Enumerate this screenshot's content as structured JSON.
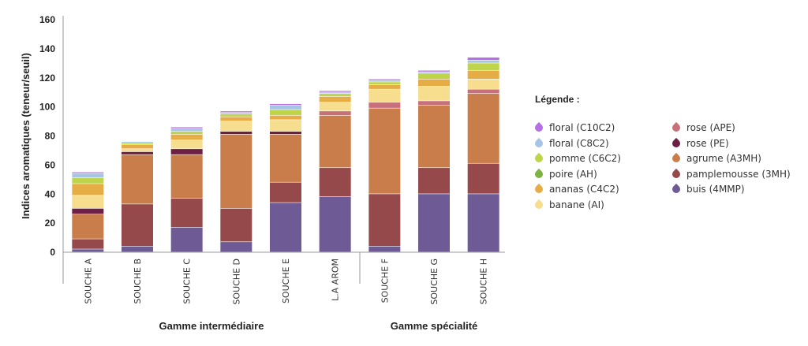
{
  "chart_data": {
    "type": "bar",
    "stacked": true,
    "ylabel": "Indices aromatiques (teneur/seuil)",
    "ylim": [
      0,
      160
    ],
    "yticks": [
      0,
      20,
      40,
      60,
      80,
      100,
      120,
      140,
      160
    ],
    "categories": [
      "SOUCHE A",
      "SOUCHE B",
      "SOUCHE C",
      "SOUCHE D",
      "SOUCHE E",
      "L.A AROM",
      "SOUCHE F",
      "SOUCHE G",
      "SOUCHE H"
    ],
    "groups": [
      {
        "label": "Gamme intermédiaire",
        "categories": [
          "SOUCHE A",
          "SOUCHE B",
          "SOUCHE C",
          "SOUCHE D",
          "SOUCHE E",
          "L.A AROM"
        ]
      },
      {
        "label": "Gamme spécialité",
        "categories": [
          "SOUCHE F",
          "SOUCHE G",
          "SOUCHE H"
        ]
      }
    ],
    "legend_title": "Légende :",
    "series": [
      {
        "name": "buis (4MMP)",
        "color": "#6e5b96",
        "values": [
          2,
          4,
          17,
          7,
          34,
          38,
          4,
          40,
          40
        ]
      },
      {
        "name": "pamplemousse (3MH)",
        "color": "#95494b",
        "values": [
          7,
          29,
          20,
          23,
          14,
          20,
          36,
          18,
          21
        ]
      },
      {
        "name": "agrume (A3MH)",
        "color": "#c97d4a",
        "values": [
          17,
          34,
          30,
          51,
          33,
          36,
          59,
          43,
          48
        ]
      },
      {
        "name": "rose (PE)",
        "color": "#6e1f45",
        "values": [
          4,
          2,
          4,
          2,
          2,
          0,
          0,
          0,
          0
        ]
      },
      {
        "name": "rose (APE)",
        "color": "#c7707a",
        "values": [
          0,
          0,
          0,
          0,
          0,
          3,
          4,
          3,
          3
        ]
      },
      {
        "name": "banane (AI)",
        "color": "#f7dd8e",
        "values": [
          9,
          2,
          6,
          7,
          8,
          6,
          9,
          10,
          7
        ]
      },
      {
        "name": "ananas (C4C2)",
        "color": "#e6ad46",
        "values": [
          8,
          3,
          4,
          3,
          3,
          4,
          3,
          5,
          6
        ]
      },
      {
        "name": "poire (AH)",
        "color": "#7cb342",
        "values": [
          0,
          0,
          0,
          0,
          0,
          0,
          0,
          0,
          0
        ]
      },
      {
        "name": "pomme (C6C2)",
        "color": "#bed449",
        "values": [
          4,
          1,
          2,
          2,
          4,
          2,
          2,
          4,
          5
        ]
      },
      {
        "name": "floral (C8C2)",
        "color": "#a6c5e6",
        "values": [
          3,
          1,
          2,
          1,
          3,
          1,
          1,
          1,
          2
        ]
      },
      {
        "name": "floral (C10C2)",
        "color": "#b66fe4",
        "values": [
          1,
          0,
          1,
          1,
          1,
          1,
          1,
          1,
          2
        ]
      }
    ]
  },
  "legend": {
    "title": "Légende :",
    "left": [
      {
        "label": "floral (C10C2)",
        "color": "#b66fe4"
      },
      {
        "label": "floral (C8C2)",
        "color": "#a6c5e6"
      },
      {
        "label": "pomme (C6C2)",
        "color": "#bed449"
      },
      {
        "label": "poire (AH)",
        "color": "#7cb342"
      },
      {
        "label": "ananas (C4C2)",
        "color": "#e6ad46"
      },
      {
        "label": "banane (AI)",
        "color": "#f7dd8e"
      }
    ],
    "right": [
      {
        "label": "rose (APE)",
        "color": "#c7707a"
      },
      {
        "label": "rose (PE)",
        "color": "#6e1f45"
      },
      {
        "label": "agrume (A3MH)",
        "color": "#c97d4a"
      },
      {
        "label": "pamplemousse (3MH)",
        "color": "#95494b"
      },
      {
        "label": "buis (4MMP)",
        "color": "#6e5b96"
      }
    ]
  }
}
